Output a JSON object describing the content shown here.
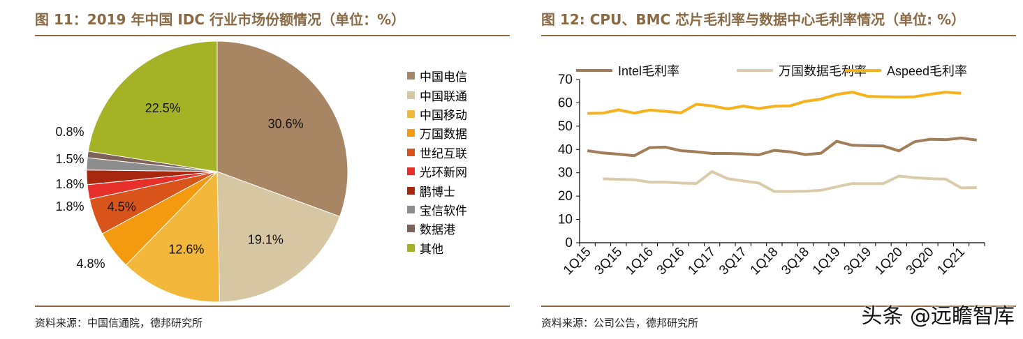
{
  "left": {
    "title": "图 11：2019 年中国 IDC 行业市场份额情况（单位：%）",
    "source": "资料来源：中国信通院，德邦研究所"
  },
  "right": {
    "title": "图 12: CPU、BMC 芯片毛利率与数据中心毛利率情况（单位: %）",
    "source": "资料来源：公司公告，德邦研究所"
  },
  "watermark": "头条 @远瞻智库",
  "chart_data": [
    {
      "type": "pie",
      "slices": [
        {
          "label": "中国电信",
          "value": 30.6,
          "value_label": "30.6%",
          "color": "#a88563"
        },
        {
          "label": "中国联通",
          "value": 19.1,
          "value_label": "19.1%",
          "color": "#d6c6a1"
        },
        {
          "label": "中国移动",
          "value": 12.6,
          "value_label": "12.6%",
          "color": "#f3b73b"
        },
        {
          "label": "万国数据",
          "value": 4.8,
          "value_label": "4.8%",
          "color": "#f39a0f"
        },
        {
          "label": "世纪互联",
          "value": 4.5,
          "value_label": "4.5%",
          "color": "#d8541a"
        },
        {
          "label": "光环新网",
          "value": 1.8,
          "value_label": "1.8%",
          "color": "#e8302a"
        },
        {
          "label": "鹏博士",
          "value": 1.8,
          "value_label": "1.8%",
          "color": "#a8280f"
        },
        {
          "label": "宝信软件",
          "value": 1.5,
          "value_label": "1.5%",
          "color": "#8d8d8d"
        },
        {
          "label": "数据港",
          "value": 0.8,
          "value_label": "0.8%",
          "color": "#7e6258"
        },
        {
          "label": "其他",
          "value": 22.5,
          "value_label": "22.5%",
          "color": "#a4b325"
        }
      ]
    },
    {
      "type": "line",
      "x": [
        "1Q15",
        "2Q15",
        "3Q15",
        "4Q15",
        "1Q16",
        "2Q16",
        "3Q16",
        "4Q16",
        "1Q17",
        "2Q17",
        "3Q17",
        "4Q17",
        "1Q18",
        "2Q18",
        "3Q18",
        "4Q18",
        "1Q19",
        "2Q19",
        "3Q19",
        "4Q19",
        "1Q20",
        "2Q20",
        "3Q20",
        "4Q20",
        "1Q21",
        "2Q21"
      ],
      "tick_labels": [
        "1Q15",
        "3Q15",
        "1Q16",
        "3Q16",
        "1Q17",
        "3Q17",
        "1Q18",
        "3Q18",
        "1Q19",
        "3Q19",
        "1Q20",
        "3Q20",
        "1Q21"
      ],
      "ylim": [
        0,
        70
      ],
      "yticks": [
        0,
        10,
        20,
        30,
        40,
        50,
        60,
        70
      ],
      "legend_position": "top",
      "series": [
        {
          "name": "Intel毛利率",
          "color": "#a27d5a",
          "values": [
            39.5,
            38.5,
            38,
            37.3,
            40.8,
            41,
            39.5,
            39,
            38.3,
            38.3,
            38.1,
            37.7,
            39.6,
            39,
            37.8,
            38.4,
            43.5,
            41.8,
            41.6,
            41.5,
            39.4,
            43.3,
            44.4,
            44.2,
            44.9,
            44
          ]
        },
        {
          "name": "万国数据毛利率",
          "color": "#dccbab",
          "values": [
            null,
            27.4,
            27.2,
            27,
            26,
            26,
            25.6,
            25.4,
            30.5,
            27.5,
            26.5,
            25.6,
            22,
            22,
            22.1,
            22.5,
            24,
            25.4,
            25.4,
            25.4,
            28.6,
            27.9,
            27.5,
            27.3,
            23.5,
            23.7
          ]
        },
        {
          "name": "Aspeed毛利率",
          "color": "#f5b21e",
          "values": [
            55.5,
            55.6,
            57,
            55.6,
            56.9,
            56.4,
            55.7,
            59.4,
            58.7,
            57.4,
            58.6,
            57.6,
            58.5,
            58.7,
            60.7,
            61.6,
            63.6,
            64.6,
            62.8,
            62.6,
            62.5,
            62.6,
            63.7,
            64.6,
            64.1,
            null
          ]
        }
      ]
    }
  ]
}
